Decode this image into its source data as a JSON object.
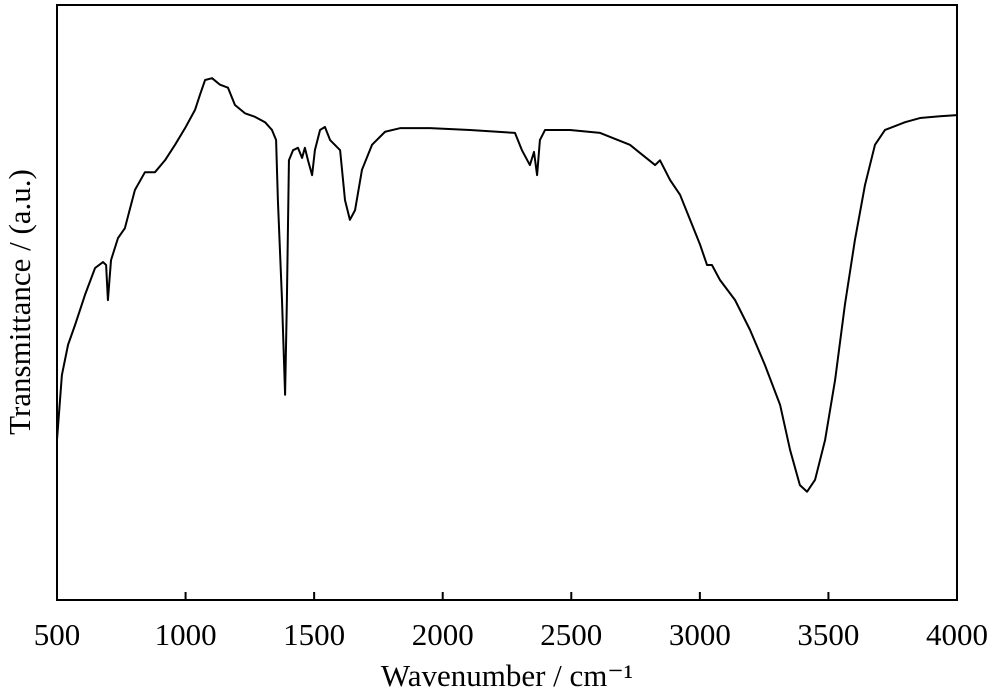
{
  "chart_data": {
    "type": "line",
    "x_label": "Wavenumber / cm⁻¹",
    "y_label": "Transmittance / (a.u.)",
    "xlim": [
      500,
      4000
    ],
    "ylim": [
      0,
      100
    ],
    "xticks": [
      500,
      1000,
      1500,
      2000,
      2500,
      3000,
      3500,
      4000
    ],
    "x": [
      500,
      519,
      543,
      570,
      609,
      648,
      679,
      691,
      698,
      710,
      737,
      764,
      803,
      842,
      881,
      920,
      959,
      998,
      1037,
      1056,
      1076,
      1103,
      1134,
      1165,
      1192,
      1231,
      1270,
      1309,
      1336,
      1352,
      1359,
      1375,
      1387,
      1394,
      1402,
      1418,
      1437,
      1453,
      1464,
      1476,
      1492,
      1503,
      1523,
      1542,
      1562,
      1601,
      1620,
      1639,
      1659,
      1686,
      1725,
      1776,
      1834,
      1951,
      2106,
      2281,
      2308,
      2339,
      2355,
      2367,
      2378,
      2398,
      2495,
      2612,
      2728,
      2826,
      2845,
      2884,
      2923,
      2962,
      3001,
      3028,
      3047,
      3078,
      3137,
      3195,
      3253,
      3312,
      3351,
      3389,
      3417,
      3448,
      3487,
      3526,
      3564,
      3603,
      3642,
      3681,
      3720,
      3798,
      3856,
      3934,
      4000
    ],
    "series": [
      {
        "color": "#000000",
        "values": [
          26.9,
          37.8,
          42.9,
          46.2,
          51.3,
          55.8,
          56.8,
          56.3,
          50.4,
          57.1,
          60.8,
          62.5,
          68.9,
          71.9,
          71.9,
          73.9,
          76.5,
          79.3,
          82.4,
          84.9,
          87.4,
          87.7,
          86.6,
          86.1,
          83.2,
          81.8,
          81.2,
          80.3,
          79.0,
          77.3,
          67.2,
          50.4,
          34.5,
          50.4,
          73.9,
          75.6,
          76.0,
          74.3,
          76.0,
          73.9,
          71.4,
          75.6,
          79.0,
          79.5,
          77.3,
          75.6,
          67.2,
          63.9,
          65.5,
          72.3,
          76.5,
          78.7,
          79.3,
          79.3,
          79.0,
          78.5,
          75.6,
          73.1,
          75.3,
          71.4,
          77.3,
          79.0,
          79.0,
          78.5,
          76.5,
          73.1,
          73.9,
          70.6,
          68.1,
          63.9,
          59.7,
          56.3,
          56.3,
          53.8,
          50.4,
          45.4,
          39.5,
          32.8,
          25.2,
          19.3,
          18.2,
          20.2,
          26.9,
          37.0,
          49.6,
          60.5,
          69.7,
          76.5,
          79.0,
          80.3,
          81.0,
          81.3,
          81.5
        ]
      }
    ]
  }
}
